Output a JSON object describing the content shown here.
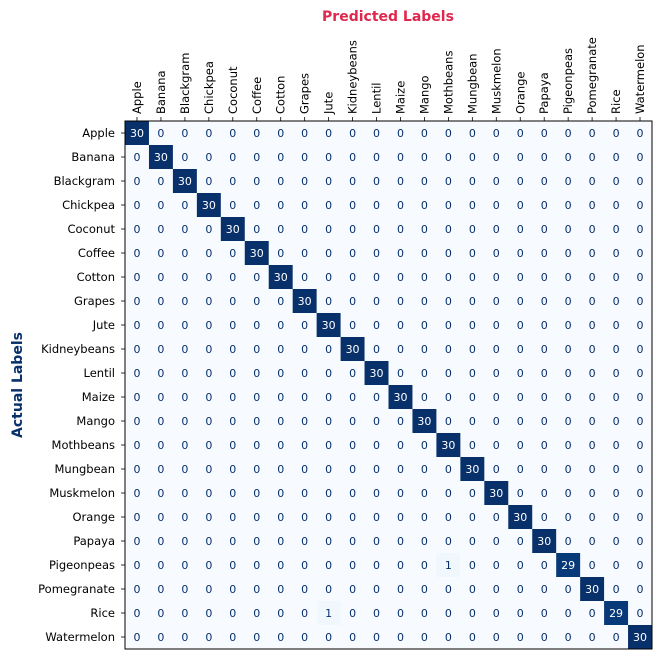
{
  "chart_data": {
    "type": "heatmap",
    "title": "Predicted Labels",
    "xlabel": "Predicted Labels",
    "ylabel": "Actual Labels",
    "x_categories": [
      "Apple",
      "Banana",
      "Blackgram",
      "Chickpea",
      "Coconut",
      "Coffee",
      "Cotton",
      "Grapes",
      "Jute",
      "Kidneybeans",
      "Lentil",
      "Maize",
      "Mango",
      "Mothbeans",
      "Mungbean",
      "Muskmelon",
      "Orange",
      "Papaya",
      "Pigeonpeas",
      "Pomegranate",
      "Rice",
      "Watermelon"
    ],
    "y_categories": [
      "Apple",
      "Banana",
      "Blackgram",
      "Chickpea",
      "Coconut",
      "Coffee",
      "Cotton",
      "Grapes",
      "Jute",
      "Kidneybeans",
      "Lentil",
      "Maize",
      "Mango",
      "Mothbeans",
      "Mungbean",
      "Muskmelon",
      "Orange",
      "Papaya",
      "Pigeonpeas",
      "Pomegranate",
      "Rice",
      "Watermelon"
    ],
    "values": [
      [
        30,
        0,
        0,
        0,
        0,
        0,
        0,
        0,
        0,
        0,
        0,
        0,
        0,
        0,
        0,
        0,
        0,
        0,
        0,
        0,
        0,
        0
      ],
      [
        0,
        30,
        0,
        0,
        0,
        0,
        0,
        0,
        0,
        0,
        0,
        0,
        0,
        0,
        0,
        0,
        0,
        0,
        0,
        0,
        0,
        0
      ],
      [
        0,
        0,
        30,
        0,
        0,
        0,
        0,
        0,
        0,
        0,
        0,
        0,
        0,
        0,
        0,
        0,
        0,
        0,
        0,
        0,
        0,
        0
      ],
      [
        0,
        0,
        0,
        30,
        0,
        0,
        0,
        0,
        0,
        0,
        0,
        0,
        0,
        0,
        0,
        0,
        0,
        0,
        0,
        0,
        0,
        0
      ],
      [
        0,
        0,
        0,
        0,
        30,
        0,
        0,
        0,
        0,
        0,
        0,
        0,
        0,
        0,
        0,
        0,
        0,
        0,
        0,
        0,
        0,
        0
      ],
      [
        0,
        0,
        0,
        0,
        0,
        30,
        0,
        0,
        0,
        0,
        0,
        0,
        0,
        0,
        0,
        0,
        0,
        0,
        0,
        0,
        0,
        0
      ],
      [
        0,
        0,
        0,
        0,
        0,
        0,
        30,
        0,
        0,
        0,
        0,
        0,
        0,
        0,
        0,
        0,
        0,
        0,
        0,
        0,
        0,
        0
      ],
      [
        0,
        0,
        0,
        0,
        0,
        0,
        0,
        30,
        0,
        0,
        0,
        0,
        0,
        0,
        0,
        0,
        0,
        0,
        0,
        0,
        0,
        0
      ],
      [
        0,
        0,
        0,
        0,
        0,
        0,
        0,
        0,
        30,
        0,
        0,
        0,
        0,
        0,
        0,
        0,
        0,
        0,
        0,
        0,
        0,
        0
      ],
      [
        0,
        0,
        0,
        0,
        0,
        0,
        0,
        0,
        0,
        30,
        0,
        0,
        0,
        0,
        0,
        0,
        0,
        0,
        0,
        0,
        0,
        0
      ],
      [
        0,
        0,
        0,
        0,
        0,
        0,
        0,
        0,
        0,
        0,
        30,
        0,
        0,
        0,
        0,
        0,
        0,
        0,
        0,
        0,
        0,
        0
      ],
      [
        0,
        0,
        0,
        0,
        0,
        0,
        0,
        0,
        0,
        0,
        0,
        30,
        0,
        0,
        0,
        0,
        0,
        0,
        0,
        0,
        0,
        0
      ],
      [
        0,
        0,
        0,
        0,
        0,
        0,
        0,
        0,
        0,
        0,
        0,
        0,
        30,
        0,
        0,
        0,
        0,
        0,
        0,
        0,
        0,
        0
      ],
      [
        0,
        0,
        0,
        0,
        0,
        0,
        0,
        0,
        0,
        0,
        0,
        0,
        0,
        30,
        0,
        0,
        0,
        0,
        0,
        0,
        0,
        0
      ],
      [
        0,
        0,
        0,
        0,
        0,
        0,
        0,
        0,
        0,
        0,
        0,
        0,
        0,
        0,
        30,
        0,
        0,
        0,
        0,
        0,
        0,
        0
      ],
      [
        0,
        0,
        0,
        0,
        0,
        0,
        0,
        0,
        0,
        0,
        0,
        0,
        0,
        0,
        0,
        30,
        0,
        0,
        0,
        0,
        0,
        0
      ],
      [
        0,
        0,
        0,
        0,
        0,
        0,
        0,
        0,
        0,
        0,
        0,
        0,
        0,
        0,
        0,
        0,
        30,
        0,
        0,
        0,
        0,
        0
      ],
      [
        0,
        0,
        0,
        0,
        0,
        0,
        0,
        0,
        0,
        0,
        0,
        0,
        0,
        0,
        0,
        0,
        0,
        30,
        0,
        0,
        0,
        0
      ],
      [
        0,
        0,
        0,
        0,
        0,
        0,
        0,
        0,
        0,
        0,
        0,
        0,
        0,
        1,
        0,
        0,
        0,
        0,
        29,
        0,
        0,
        0
      ],
      [
        0,
        0,
        0,
        0,
        0,
        0,
        0,
        0,
        0,
        0,
        0,
        0,
        0,
        0,
        0,
        0,
        0,
        0,
        0,
        30,
        0,
        0
      ],
      [
        0,
        0,
        0,
        0,
        0,
        0,
        0,
        0,
        1,
        0,
        0,
        0,
        0,
        0,
        0,
        0,
        0,
        0,
        0,
        0,
        29,
        0
      ],
      [
        0,
        0,
        0,
        0,
        0,
        0,
        0,
        0,
        0,
        0,
        0,
        0,
        0,
        0,
        0,
        0,
        0,
        0,
        0,
        0,
        0,
        30
      ]
    ],
    "color_scale": "Blues",
    "colors": {
      "low": "#f7fbff",
      "high": "#08306b",
      "xlabel_color": "#e0284f",
      "ylabel_color": "#08306b"
    },
    "grid": false,
    "legend": "none"
  }
}
